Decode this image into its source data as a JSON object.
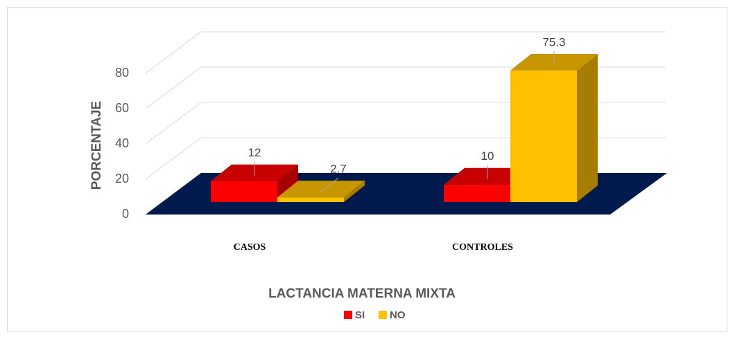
{
  "chart_data": {
    "type": "bar3d",
    "y_label": "PORCENTAJE",
    "x_label": "LACTANCIA MATERNA MIXTA",
    "categories": [
      "CASOS",
      "CONTROLES"
    ],
    "series": [
      {
        "name": "SI",
        "color": "#ff0000",
        "values": [
          12,
          10
        ]
      },
      {
        "name": "NO",
        "color": "#ffc000",
        "values": [
          2.7,
          75.3
        ]
      }
    ],
    "ylim": [
      0,
      80
    ],
    "yticks": [
      0,
      20,
      40,
      60,
      80
    ],
    "grid": true,
    "floor_color": "#001a4d",
    "legend": "bottom"
  }
}
